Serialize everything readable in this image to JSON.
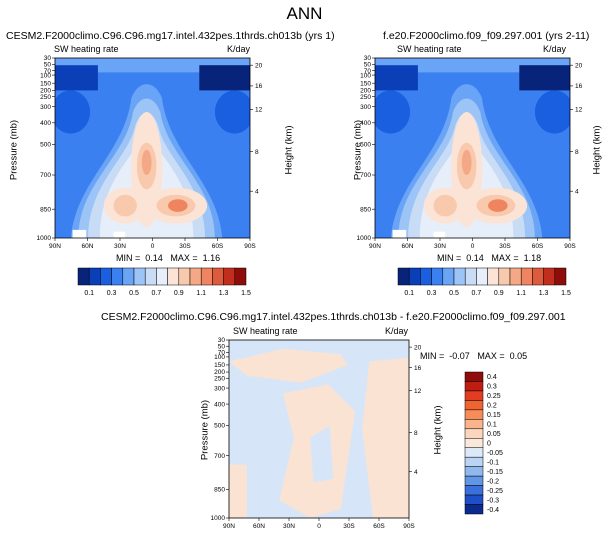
{
  "main_title": "ANN",
  "chart_data": [
    {
      "type": "contour",
      "title": "CESM2.F2000climo.C96.C96.mg17.intel.432pes.1thrds.ch013b (yrs 1)",
      "subtitle_left": "SW heating rate",
      "subtitle_right": "K/day",
      "ylabel": "Pressure (mb)",
      "ylabel_right": "Height (km)",
      "x_ticks": [
        "90N",
        "60N",
        "30N",
        "0",
        "30S",
        "60S",
        "90S"
      ],
      "y_ticks": [
        "30",
        "50",
        "70",
        "100",
        "150",
        "200",
        "250",
        "300",
        "400",
        "500",
        "700",
        "850",
        "1000"
      ],
      "height_ticks": [
        "20",
        "16",
        "12",
        "8",
        "4"
      ],
      "min_label": "MIN =",
      "min_value": "0.14",
      "max_label": "MAX =",
      "max_value": "1.16",
      "colorbar_labels": [
        "0.1",
        "0.3",
        "0.5",
        "0.7",
        "0.9",
        "1.1",
        "1.3",
        "1.5"
      ]
    },
    {
      "type": "contour",
      "title": "f.e20.F2000climo.f09_f09.297.001 (yrs 2-11)",
      "subtitle_left": "SW heating rate",
      "subtitle_right": "K/day",
      "ylabel": "Pressure (mb)",
      "ylabel_right": "Height (km)",
      "x_ticks": [
        "90N",
        "60N",
        "30N",
        "0",
        "30S",
        "60S",
        "90S"
      ],
      "y_ticks": [
        "30",
        "50",
        "70",
        "100",
        "150",
        "200",
        "250",
        "300",
        "400",
        "500",
        "700",
        "850",
        "1000"
      ],
      "height_ticks": [
        "20",
        "16",
        "12",
        "8",
        "4"
      ],
      "min_label": "MIN =",
      "min_value": "0.14",
      "max_label": "MAX =",
      "max_value": "1.18",
      "colorbar_labels": [
        "0.1",
        "0.3",
        "0.5",
        "0.7",
        "0.9",
        "1.1",
        "1.3",
        "1.5"
      ]
    },
    {
      "type": "contour",
      "title": "CESM2.F2000climo.C96.C96.mg17.intel.432pes.1thrds.ch013b - f.e20.F2000climo.f09_f09.297.001",
      "subtitle_left": "SW heating rate",
      "subtitle_right": "K/day",
      "ylabel": "Pressure (mb)",
      "ylabel_right": "Height (km)",
      "x_ticks": [
        "90N",
        "60N",
        "30N",
        "0",
        "30S",
        "60S",
        "90S"
      ],
      "y_ticks": [
        "30",
        "50",
        "70",
        "100",
        "150",
        "200",
        "250",
        "300",
        "400",
        "500",
        "700",
        "850",
        "1000"
      ],
      "height_ticks": [
        "20",
        "16",
        "12",
        "8",
        "4"
      ],
      "min_label": "MIN =",
      "min_value": "-0.07",
      "max_label": "MAX =",
      "max_value": "0.05",
      "colorbar_labels": [
        "0.4",
        "0.3",
        "0.25",
        "0.2",
        "0.15",
        "0.1",
        "0.05",
        "0",
        "-0.05",
        "-0.1",
        "-0.15",
        "-0.2",
        "-0.25",
        "-0.3",
        "-0.4"
      ]
    }
  ],
  "colors": {
    "seq": [
      "#08247a",
      "#0a3fb8",
      "#1a5fe0",
      "#3a80f0",
      "#6aa4f6",
      "#9cc4f7",
      "#c8dcf6",
      "#e6eefa",
      "#fbe4d6",
      "#f8c9ad",
      "#f5a886",
      "#ee8460",
      "#dd5a3c",
      "#c22e1e",
      "#8e0d0a"
    ],
    "diff_pos": "#fbe3d3",
    "diff_neg": "#d6e6f8",
    "diff_bar": [
      "#8e0d0a",
      "#c01d12",
      "#e23d20",
      "#f06430",
      "#f78c58",
      "#f9b48c",
      "#fbd6be",
      "#fbe8dc",
      "#dce9f8",
      "#b9d4f4",
      "#8fb8ee",
      "#6195e6",
      "#3a6fdc",
      "#1e4ec8",
      "#0a2a90"
    ]
  }
}
